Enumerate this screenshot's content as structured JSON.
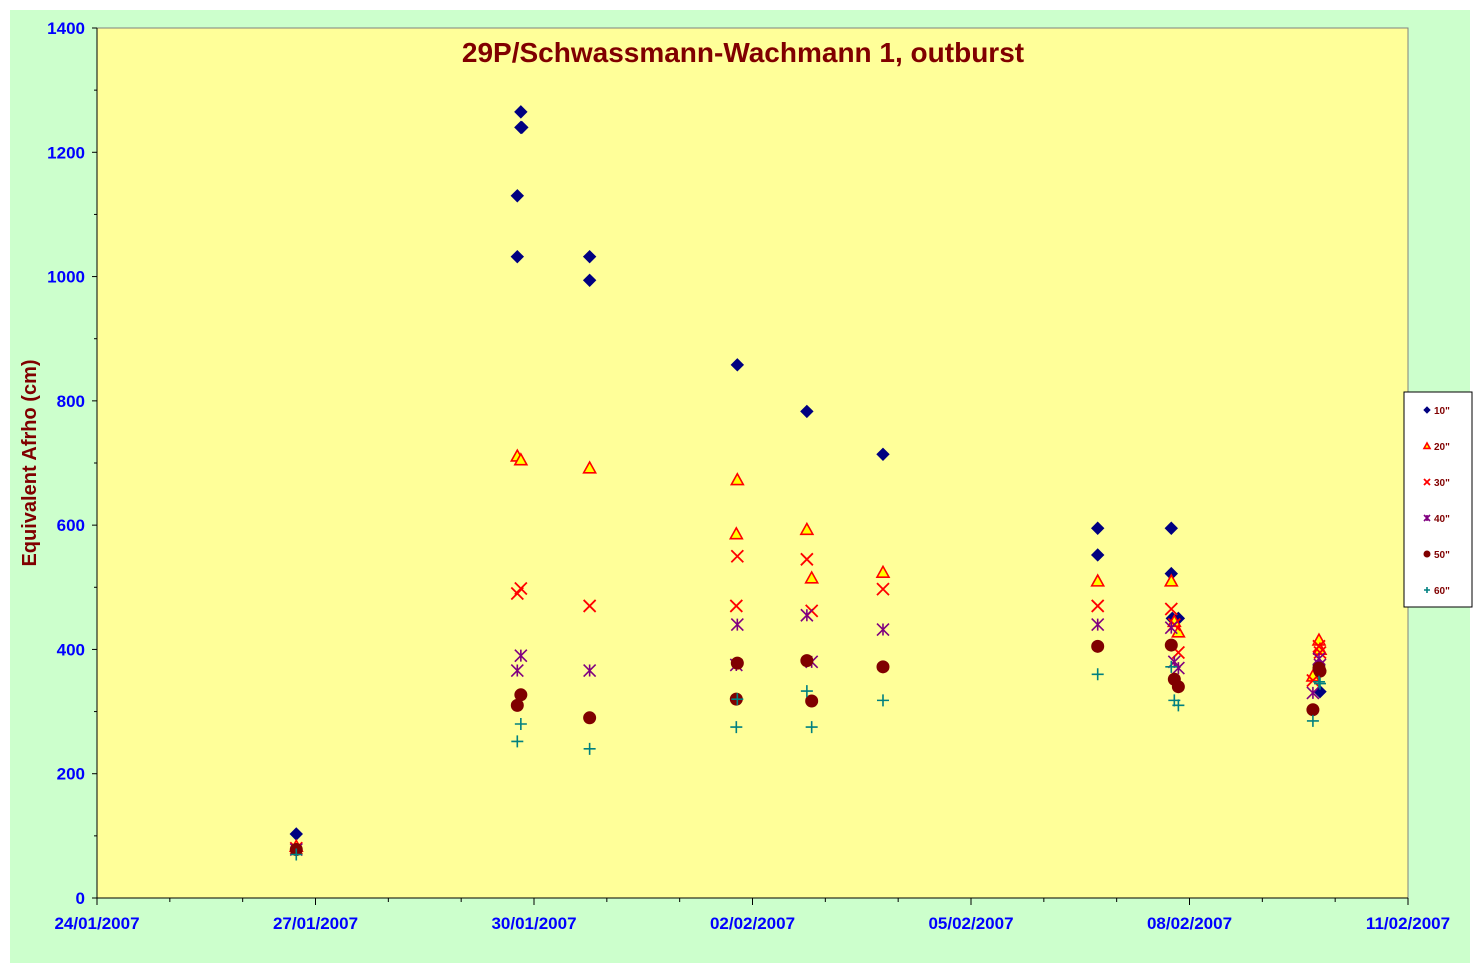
{
  "chart_data": {
    "type": "scatter",
    "title": "29P/Schwassmann-Wachmann  1, outburst",
    "xlabel": "",
    "ylabel": "Equivalent Afrho (cm)",
    "xlim": [
      "24/01/2007",
      "11/02/2007"
    ],
    "ylim": [
      0,
      1400
    ],
    "x_ticks": [
      "24/01/2007",
      "27/01/2007",
      "30/01/2007",
      "02/02/2007",
      "05/02/2007",
      "08/02/2007",
      "11/02/2007"
    ],
    "y_ticks": [
      "0",
      "200",
      "400",
      "600",
      "800",
      "1000",
      "1200",
      "1400"
    ],
    "grid": false,
    "legend_position": "right",
    "series": [
      {
        "name": "10\"",
        "marker": "diamond",
        "color": "#000080",
        "points": [
          [
            "2007-01-26T17:40",
            103
          ],
          [
            "2007-01-29T18:30",
            1032
          ],
          [
            "2007-01-29T18:30",
            1130
          ],
          [
            "2007-01-29T19:40",
            1240
          ],
          [
            "2007-01-29T20:00",
            1240
          ],
          [
            "2007-01-29T19:40",
            1265
          ],
          [
            "2007-01-30T18:20",
            994
          ],
          [
            "2007-01-30T18:20",
            1032
          ],
          [
            "2007-02-01T19:00",
            858
          ],
          [
            "2007-02-02T17:55",
            783
          ],
          [
            "2007-02-03T19:00",
            714
          ],
          [
            "2007-02-06T17:45",
            595
          ],
          [
            "2007-02-06T17:45",
            552
          ],
          [
            "2007-02-07T18:00",
            595
          ],
          [
            "2007-02-07T18:00",
            522
          ],
          [
            "2007-02-07T18:20",
            450
          ],
          [
            "2007-02-07T20:20",
            450
          ],
          [
            "2007-02-09T19:00",
            332
          ],
          [
            "2007-02-09T18:40",
            375
          ]
        ]
      },
      {
        "name": "20\"",
        "marker": "triangle",
        "color": "#ff0000",
        "fill": "#ffff00",
        "points": [
          [
            "2007-01-26T17:40",
            83
          ],
          [
            "2007-01-29T18:30",
            711
          ],
          [
            "2007-01-29T19:40",
            705
          ],
          [
            "2007-01-30T18:20",
            692
          ],
          [
            "2007-02-01T18:40",
            586
          ],
          [
            "2007-02-01T19:00",
            673
          ],
          [
            "2007-02-02T17:55",
            593
          ],
          [
            "2007-02-02T19:30",
            515
          ],
          [
            "2007-02-03T19:00",
            524
          ],
          [
            "2007-02-06T17:45",
            510
          ],
          [
            "2007-02-07T18:00",
            510
          ],
          [
            "2007-02-07T19:00",
            445
          ],
          [
            "2007-02-07T20:20",
            428
          ],
          [
            "2007-02-09T16:40",
            357
          ],
          [
            "2007-02-09T18:40",
            415
          ],
          [
            "2007-02-09T19:00",
            400
          ]
        ]
      },
      {
        "name": "30\"",
        "marker": "x",
        "color": "#ff0000",
        "points": [
          [
            "2007-01-26T17:40",
            80
          ],
          [
            "2007-01-29T18:30",
            490
          ],
          [
            "2007-01-29T19:40",
            498
          ],
          [
            "2007-01-30T18:20",
            470
          ],
          [
            "2007-02-01T18:40",
            470
          ],
          [
            "2007-02-01T19:00",
            550
          ],
          [
            "2007-02-02T17:55",
            545
          ],
          [
            "2007-02-02T19:30",
            462
          ],
          [
            "2007-02-03T19:00",
            497
          ],
          [
            "2007-02-06T17:45",
            470
          ],
          [
            "2007-02-07T18:00",
            465
          ],
          [
            "2007-02-07T19:00",
            440
          ],
          [
            "2007-02-07T20:20",
            395
          ],
          [
            "2007-02-09T16:40",
            350
          ],
          [
            "2007-02-09T18:40",
            405
          ],
          [
            "2007-02-09T19:00",
            395
          ]
        ]
      },
      {
        "name": "40\"",
        "marker": "star",
        "color": "#800080",
        "points": [
          [
            "2007-01-26T17:40",
            78
          ],
          [
            "2007-01-29T18:30",
            366
          ],
          [
            "2007-01-29T19:40",
            390
          ],
          [
            "2007-01-30T18:20",
            366
          ],
          [
            "2007-02-01T18:40",
            375
          ],
          [
            "2007-02-01T19:00",
            440
          ],
          [
            "2007-02-02T17:55",
            455
          ],
          [
            "2007-02-02T19:30",
            380
          ],
          [
            "2007-02-03T19:00",
            432
          ],
          [
            "2007-02-06T17:45",
            440
          ],
          [
            "2007-02-07T18:00",
            435
          ],
          [
            "2007-02-07T19:00",
            380
          ],
          [
            "2007-02-07T20:20",
            370
          ],
          [
            "2007-02-09T16:40",
            330
          ],
          [
            "2007-02-09T18:40",
            385
          ],
          [
            "2007-02-09T19:00",
            375
          ]
        ]
      },
      {
        "name": "50\"",
        "marker": "circle",
        "color": "#800000",
        "points": [
          [
            "2007-01-26T17:40",
            78
          ],
          [
            "2007-01-29T18:30",
            310
          ],
          [
            "2007-01-29T19:40",
            327
          ],
          [
            "2007-01-30T18:20",
            290
          ],
          [
            "2007-02-01T18:40",
            320
          ],
          [
            "2007-02-01T19:00",
            378
          ],
          [
            "2007-02-02T17:55",
            382
          ],
          [
            "2007-02-02T19:30",
            317
          ],
          [
            "2007-02-03T19:00",
            372
          ],
          [
            "2007-02-06T17:45",
            405
          ],
          [
            "2007-02-07T18:00",
            407
          ],
          [
            "2007-02-07T19:00",
            352
          ],
          [
            "2007-02-07T20:20",
            340
          ],
          [
            "2007-02-09T16:40",
            303
          ],
          [
            "2007-02-09T18:40",
            370
          ],
          [
            "2007-02-09T19:00",
            365
          ]
        ]
      },
      {
        "name": "60\"",
        "marker": "plus",
        "color": "#008080",
        "points": [
          [
            "2007-01-26T17:40",
            70
          ],
          [
            "2007-01-29T18:30",
            252
          ],
          [
            "2007-01-29T19:40",
            280
          ],
          [
            "2007-01-30T18:20",
            240
          ],
          [
            "2007-02-01T18:40",
            275
          ],
          [
            "2007-02-01T19:00",
            320
          ],
          [
            "2007-02-02T17:55",
            333
          ],
          [
            "2007-02-02T19:30",
            275
          ],
          [
            "2007-02-03T19:00",
            318
          ],
          [
            "2007-02-06T17:45",
            360
          ],
          [
            "2007-02-07T18:00",
            372
          ],
          [
            "2007-02-07T19:00",
            318
          ],
          [
            "2007-02-07T20:20",
            310
          ],
          [
            "2007-02-09T16:40",
            285
          ],
          [
            "2007-02-09T18:40",
            348
          ],
          [
            "2007-02-09T19:00",
            345
          ]
        ]
      }
    ]
  },
  "colors": {
    "background": "#ccffcc",
    "plot_area": "#ffff99",
    "axis_text": "#0000ff",
    "title_text": "#800000"
  }
}
